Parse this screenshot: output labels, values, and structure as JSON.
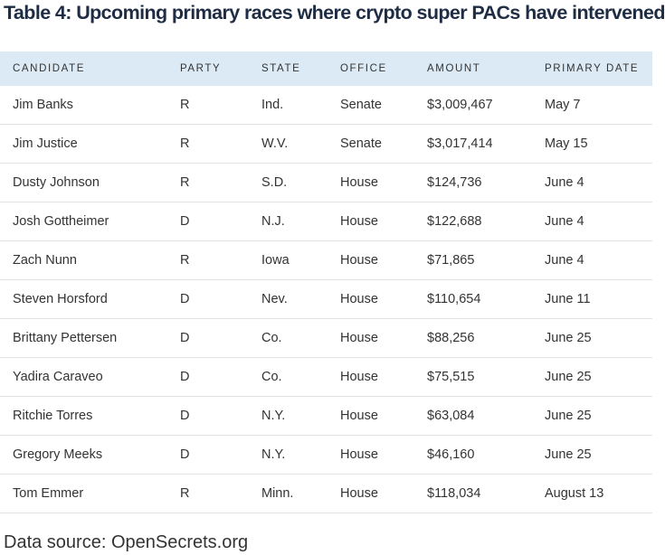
{
  "title": "Table 4: Upcoming primary races where crypto super PACs have intervened",
  "table": {
    "header": [
      "CANDIDATE",
      "PARTY",
      "STATE",
      "OFFICE",
      "AMOUNT",
      "PRIMARY DATE"
    ],
    "rows": [
      [
        "Jim Banks",
        "R",
        "Ind.",
        "Senate",
        "$3,009,467",
        "May 7"
      ],
      [
        "Jim Justice",
        "R",
        "W.V.",
        "Senate",
        "$3,017,414",
        "May 15"
      ],
      [
        "Dusty Johnson",
        "R",
        "S.D.",
        "House",
        "$124,736",
        "June 4"
      ],
      [
        "Josh Gottheimer",
        "D",
        "N.J.",
        "House",
        "$122,688",
        "June 4"
      ],
      [
        "Zach Nunn",
        "R",
        "Iowa",
        "House",
        "$71,865",
        "June 4"
      ],
      [
        "Steven Horsford",
        "D",
        "Nev.",
        "House",
        "$110,654",
        "June 11"
      ],
      [
        "Brittany Pettersen",
        "D",
        "Co.",
        "House",
        "$88,256",
        "June 25"
      ],
      [
        "Yadira Caraveo",
        "D",
        "Co.",
        "House",
        "$75,515",
        "June 25"
      ],
      [
        "Ritchie Torres",
        "D",
        "N.Y.",
        "House",
        "$63,084",
        "June 25"
      ],
      [
        "Gregory Meeks",
        "D",
        "N.Y.",
        "House",
        "$46,160",
        "June 25"
      ],
      [
        "Tom Emmer",
        "R",
        "Minn.",
        "House",
        "$118,034",
        "August 13"
      ]
    ]
  },
  "source": "Data source: OpenSecrets.org"
}
